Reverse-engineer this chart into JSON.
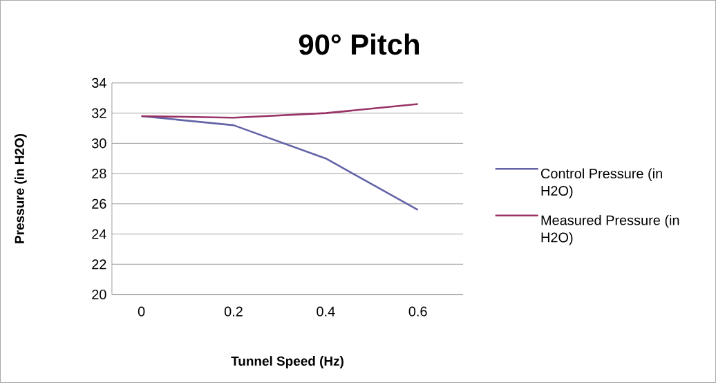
{
  "chart_data": {
    "type": "line",
    "title": "90° Pitch",
    "xlabel": "Tunnel Speed (Hz)",
    "ylabel": "Pressure (in H2O)",
    "categories": [
      "0",
      "0.2",
      "0.4",
      "0.6"
    ],
    "series": [
      {
        "name": "Control Pressure (in H2O)",
        "color": "#6264a7",
        "values": [
          31.8,
          31.2,
          29.0,
          25.6
        ]
      },
      {
        "name": "Measured Pressure (in H2O)",
        "color": "#993366",
        "values": [
          31.8,
          31.7,
          32.0,
          32.6
        ]
      }
    ],
    "ylim": [
      20,
      34
    ],
    "yticks": [
      20,
      22,
      24,
      26,
      28,
      30,
      32,
      34
    ],
    "grid": "y",
    "legend": "right",
    "line_style": "solid"
  }
}
